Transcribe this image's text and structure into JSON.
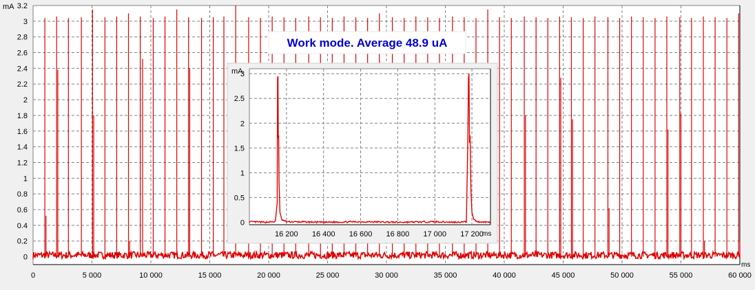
{
  "title": "Work mode. Average 48.9 uA",
  "colors": {
    "trace": "#e00000",
    "title_text": "#0000cc",
    "grid": "#808080",
    "panel_bg": "#f0f0f0",
    "plot_bg": "#ffffff"
  },
  "chart_data": [
    {
      "type": "line",
      "id": "main",
      "xunit": "ms",
      "yunit": "mA",
      "xlim": [
        0,
        60000
      ],
      "ylim": [
        -0.1,
        3.2
      ],
      "xticks": [
        0,
        5000,
        10000,
        15000,
        20000,
        25000,
        30000,
        35000,
        40000,
        45000,
        50000,
        55000,
        60000
      ],
      "xtick_labels": [
        "0",
        "5 000",
        "10 000",
        "15 000",
        "20 000",
        "25 000",
        "30 000",
        "35 000",
        "40 000",
        "45 000",
        "50 000",
        "55 000",
        "60 000"
      ],
      "yticks": [
        0,
        0.2,
        0.4,
        0.6,
        0.8,
        1,
        1.2,
        1.4,
        1.6,
        1.8,
        2,
        2.2,
        2.4,
        2.6,
        2.8,
        3,
        3.2
      ],
      "ytick_labels": [
        "0",
        "0.2",
        "0.4",
        "0.6",
        "0.8",
        "1",
        "1.2",
        "1.4",
        "1.6",
        "1.8",
        "2",
        "2.2",
        "2.4",
        "2.6",
        "2.8",
        "3",
        "3.2"
      ],
      "grid": true,
      "baseline_mA": 0.02,
      "spikes": [
        {
          "x": 1000,
          "y": 3.04
        },
        {
          "x": 1100,
          "y": 0.52
        },
        {
          "x": 2000,
          "y": 3.06
        },
        {
          "x": 2100,
          "y": 2.38
        },
        {
          "x": 3000,
          "y": 3.04
        },
        {
          "x": 4100,
          "y": 3.05
        },
        {
          "x": 5050,
          "y": 3.15
        },
        {
          "x": 5150,
          "y": 1.8
        },
        {
          "x": 6100,
          "y": 3.05
        },
        {
          "x": 7100,
          "y": 3.06
        },
        {
          "x": 8100,
          "y": 3.1
        },
        {
          "x": 8200,
          "y": 0.2
        },
        {
          "x": 9100,
          "y": 3.06
        },
        {
          "x": 9300,
          "y": 2.52
        },
        {
          "x": 10200,
          "y": 3.04
        },
        {
          "x": 11200,
          "y": 3.06
        },
        {
          "x": 12200,
          "y": 3.15
        },
        {
          "x": 13200,
          "y": 3.05
        },
        {
          "x": 13300,
          "y": 2.4
        },
        {
          "x": 14300,
          "y": 3.04
        },
        {
          "x": 15300,
          "y": 3.05
        },
        {
          "x": 16200,
          "y": 3.06
        },
        {
          "x": 17200,
          "y": 3.2
        },
        {
          "x": 18300,
          "y": 3.05
        },
        {
          "x": 19300,
          "y": 3.04
        },
        {
          "x": 20300,
          "y": 3.06
        },
        {
          "x": 21300,
          "y": 3.05
        },
        {
          "x": 22300,
          "y": 3.04
        },
        {
          "x": 23400,
          "y": 3.06
        },
        {
          "x": 24400,
          "y": 3.05
        },
        {
          "x": 25400,
          "y": 3.04
        },
        {
          "x": 26400,
          "y": 3.06
        },
        {
          "x": 27400,
          "y": 3.05
        },
        {
          "x": 28400,
          "y": 3.04
        },
        {
          "x": 29400,
          "y": 3.1
        },
        {
          "x": 30500,
          "y": 3.05
        },
        {
          "x": 31500,
          "y": 3.04
        },
        {
          "x": 32500,
          "y": 3.06
        },
        {
          "x": 33500,
          "y": 3.05
        },
        {
          "x": 34500,
          "y": 3.04
        },
        {
          "x": 35600,
          "y": 3.06
        },
        {
          "x": 36600,
          "y": 3.05
        },
        {
          "x": 37600,
          "y": 3.04
        },
        {
          "x": 38600,
          "y": 3.15
        },
        {
          "x": 39600,
          "y": 3.05
        },
        {
          "x": 40600,
          "y": 3.04
        },
        {
          "x": 41700,
          "y": 3.06
        },
        {
          "x": 41800,
          "y": 1.8
        },
        {
          "x": 42700,
          "y": 3.05
        },
        {
          "x": 43700,
          "y": 3.04
        },
        {
          "x": 44700,
          "y": 3.06
        },
        {
          "x": 44800,
          "y": 2.28
        },
        {
          "x": 45700,
          "y": 3.05
        },
        {
          "x": 45800,
          "y": 1.75
        },
        {
          "x": 46700,
          "y": 3.04
        },
        {
          "x": 47700,
          "y": 3.06
        },
        {
          "x": 48800,
          "y": 3.05
        },
        {
          "x": 48900,
          "y": 0.62
        },
        {
          "x": 49800,
          "y": 3.04
        },
        {
          "x": 50800,
          "y": 3.06
        },
        {
          "x": 51800,
          "y": 3.05
        },
        {
          "x": 52800,
          "y": 3.04
        },
        {
          "x": 53800,
          "y": 3.06
        },
        {
          "x": 53900,
          "y": 1.62
        },
        {
          "x": 54900,
          "y": 3.05
        },
        {
          "x": 55000,
          "y": 1.82
        },
        {
          "x": 55900,
          "y": 3.04
        },
        {
          "x": 56900,
          "y": 3.06
        },
        {
          "x": 57000,
          "y": 0.2
        },
        {
          "x": 57900,
          "y": 3.05
        },
        {
          "x": 58900,
          "y": 3.04
        },
        {
          "x": 59900,
          "y": 3.1
        },
        {
          "x": 60000,
          "y": 0.2
        }
      ]
    },
    {
      "type": "line",
      "id": "inset",
      "xunit": "ms",
      "yunit": "mA",
      "xlim": [
        16000,
        17300
      ],
      "ylim": [
        -0.05,
        3.1
      ],
      "xticks": [
        16200,
        16400,
        16600,
        16800,
        17000,
        17200
      ],
      "xtick_labels": [
        "16 200",
        "16 400",
        "16 600",
        "16 800",
        "17 000",
        "17 200"
      ],
      "yticks": [
        0,
        0.5,
        1,
        1.5,
        2,
        2.5,
        3
      ],
      "ytick_labels": [
        "0",
        "0.5",
        "1",
        "1.5",
        "2",
        "2.5",
        "3"
      ],
      "grid": true,
      "points": [
        [
          16000,
          0.01
        ],
        [
          16080,
          0.0
        ],
        [
          16140,
          0.01
        ],
        [
          16150,
          0.4
        ],
        [
          16152,
          2.9
        ],
        [
          16154,
          2.95
        ],
        [
          16156,
          1.7
        ],
        [
          16158,
          1.75
        ],
        [
          16160,
          0.8
        ],
        [
          16165,
          0.2
        ],
        [
          16175,
          0.05
        ],
        [
          16200,
          0.01
        ],
        [
          16400,
          0.0
        ],
        [
          16600,
          0.01
        ],
        [
          16800,
          0.0
        ],
        [
          17000,
          0.01
        ],
        [
          17100,
          0.0
        ],
        [
          17170,
          0.01
        ],
        [
          17178,
          1.7
        ],
        [
          17181,
          2.9
        ],
        [
          17184,
          3.0
        ],
        [
          17187,
          1.6
        ],
        [
          17190,
          1.75
        ],
        [
          17195,
          0.6
        ],
        [
          17200,
          0.2
        ],
        [
          17210,
          0.05
        ],
        [
          17230,
          0.01
        ],
        [
          17300,
          0.0
        ]
      ]
    }
  ]
}
